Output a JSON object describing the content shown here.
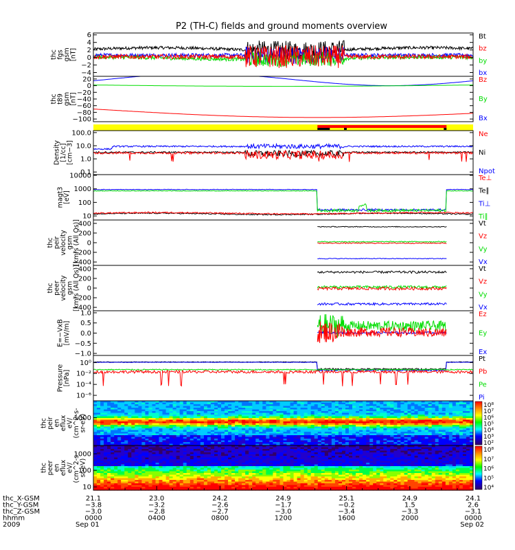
{
  "title": "P2 (TH-C) fields and ground moments overview",
  "colors": {
    "black": "#000000",
    "red": "#ff0000",
    "green": "#00dd00",
    "blue": "#0000ff",
    "yellow": "#ffff00"
  },
  "chart_data": [
    {
      "type": "line",
      "panel": "fgs_gsm",
      "ylabel": [
        "thc",
        "fgs",
        "gsm",
        "[nT]"
      ],
      "yticks": [
        "6",
        "4",
        "2",
        "0",
        "−2",
        "−4"
      ],
      "ylim": [
        -5,
        6
      ],
      "series": [
        {
          "name": "Bt",
          "color": "#000000"
        },
        {
          "name": "bz",
          "color": "#ff0000"
        },
        {
          "name": "by",
          "color": "#00dd00"
        },
        {
          "name": "bx",
          "color": "#0000ff"
        }
      ]
    },
    {
      "type": "line",
      "panel": "t89_gsm",
      "ylabel": [
        "thc",
        "t89",
        "gsm",
        "[nT]"
      ],
      "yticks": [
        "20",
        "0",
        "−20",
        "−40",
        "−60",
        "−80",
        "−100"
      ],
      "ylim": [
        -110,
        28
      ],
      "series": [
        {
          "name": "Bz",
          "color": "#ff0000"
        },
        {
          "name": "By",
          "color": "#00dd00"
        },
        {
          "name": "Bx",
          "color": "#0000ff"
        }
      ]
    },
    {
      "type": "bar",
      "panel": "mode_bar",
      "description_colors": [
        "#ffff00",
        "#ff0000",
        "#000000"
      ]
    },
    {
      "type": "line",
      "panel": "density",
      "ylabel": [
        "Density",
        "[1/cc]",
        "[cm−3]"
      ],
      "yticks": [
        "100.0",
        "10.0",
        "1.0",
        "0.1"
      ],
      "yscale": "log",
      "series": [
        {
          "name": "Ne",
          "color": "#ff0000"
        },
        {
          "name": "Ni",
          "color": "#000000"
        },
        {
          "name": "Npot",
          "color": "#0000ff"
        }
      ]
    },
    {
      "type": "line",
      "panel": "temperature",
      "ylabel": [
        "magt3",
        "[eV]"
      ],
      "yticks": [
        "10000",
        "1000",
        "100",
        "10"
      ],
      "yscale": "log",
      "series": [
        {
          "name": "Te⊥",
          "color": "#ff0000"
        },
        {
          "name": "Te∥",
          "color": "#000000"
        },
        {
          "name": "Ti⊥",
          "color": "#0000ff"
        },
        {
          "name": "Ti∥",
          "color": "#00dd00"
        }
      ]
    },
    {
      "type": "line",
      "panel": "peir_velocity",
      "ylabel": [
        "thc",
        "peir",
        "velocity",
        "gsm",
        "[km/s (All Qs)]"
      ],
      "yticks": [
        "400",
        "200",
        "0",
        "−200",
        "−400"
      ],
      "ylim": [
        -450,
        450
      ],
      "series": [
        {
          "name": "Vt",
          "color": "#000000"
        },
        {
          "name": "Vz",
          "color": "#ff0000"
        },
        {
          "name": "Vy",
          "color": "#00dd00"
        },
        {
          "name": "Vx",
          "color": "#0000ff"
        }
      ]
    },
    {
      "type": "line",
      "panel": "peer_velocity",
      "ylabel": [
        "thc",
        "peer",
        "velocity",
        "gsm",
        "[km/s (All Qs)]"
      ],
      "yticks": [
        "400",
        "200",
        "0",
        "−200",
        "−400"
      ],
      "ylim": [
        -450,
        450
      ],
      "series": [
        {
          "name": "Vt",
          "color": "#000000"
        },
        {
          "name": "Vz",
          "color": "#ff0000"
        },
        {
          "name": "Vy",
          "color": "#00dd00"
        },
        {
          "name": "Vx",
          "color": "#0000ff"
        }
      ]
    },
    {
      "type": "line",
      "panel": "efield",
      "ylabel": [
        "E=−VxB",
        "[mV/m]"
      ],
      "yticks": [
        "1.0",
        "0.5",
        "0.0",
        "−0.5",
        "−1.0"
      ],
      "ylim": [
        -1.05,
        1.05
      ],
      "series": [
        {
          "name": "Ez",
          "color": "#ff0000"
        },
        {
          "name": "Ey",
          "color": "#00dd00"
        },
        {
          "name": "Ex",
          "color": "#0000ff"
        }
      ]
    },
    {
      "type": "line",
      "panel": "pressure",
      "ylabel": [
        "Pressure",
        "[nPa]"
      ],
      "yticks": [
        "10⁰",
        "10⁻²",
        "10⁻⁴",
        "10⁻⁶"
      ],
      "yscale": "log",
      "series": [
        {
          "name": "Pt",
          "color": "#000000"
        },
        {
          "name": "Pb",
          "color": "#ff0000"
        },
        {
          "name": "Pe",
          "color": "#00dd00"
        },
        {
          "name": "Pi",
          "color": "#0000ff"
        }
      ]
    },
    {
      "type": "heatmap",
      "panel": "peir_spectrogram",
      "ylabel": [
        "thc",
        "peir",
        "en",
        "eflux",
        "eV/",
        "(cm^2-s-",
        "sr-eV)"
      ],
      "yticks": [
        "1000"
      ],
      "yscale": "log",
      "colorbar_ticks": [
        "10⁸",
        "10⁷",
        "10⁶",
        "10⁵",
        "10⁴",
        "10³",
        "10²"
      ]
    },
    {
      "type": "heatmap",
      "panel": "peer_spectrogram",
      "ylabel": [
        "thc",
        "peer",
        "en",
        "eflux",
        "eV/",
        "(cm^2-s-",
        "sr-eV)"
      ],
      "yticks": [
        "1000",
        "100",
        "10"
      ],
      "yscale": "log",
      "colorbar_ticks": [
        "10⁸",
        "10⁷",
        "10⁶",
        "10⁵",
        "10⁴"
      ]
    }
  ],
  "xaxis": {
    "row_labels": [
      "thc_X-GSM",
      "thc_Y-GSM",
      "thc_Z-GSM",
      "hhmm",
      "2009"
    ],
    "columns": [
      [
        "21.1",
        "−3.8",
        "−3.0",
        "0000",
        "Sep 01"
      ],
      [
        "23.0",
        "−3.2",
        "−2.8",
        "0400",
        ""
      ],
      [
        "24.2",
        "−2.6",
        "−2.7",
        "0800",
        ""
      ],
      [
        "24.9",
        "−1.7",
        "−3.0",
        "1200",
        ""
      ],
      [
        "25.1",
        "−0.2",
        "−3.4",
        "1600",
        ""
      ],
      [
        "24.9",
        "1.5",
        "−3.3",
        "2000",
        ""
      ],
      [
        "24.1",
        "2.6",
        "−3.1",
        "0000",
        "Sep 02"
      ]
    ]
  }
}
